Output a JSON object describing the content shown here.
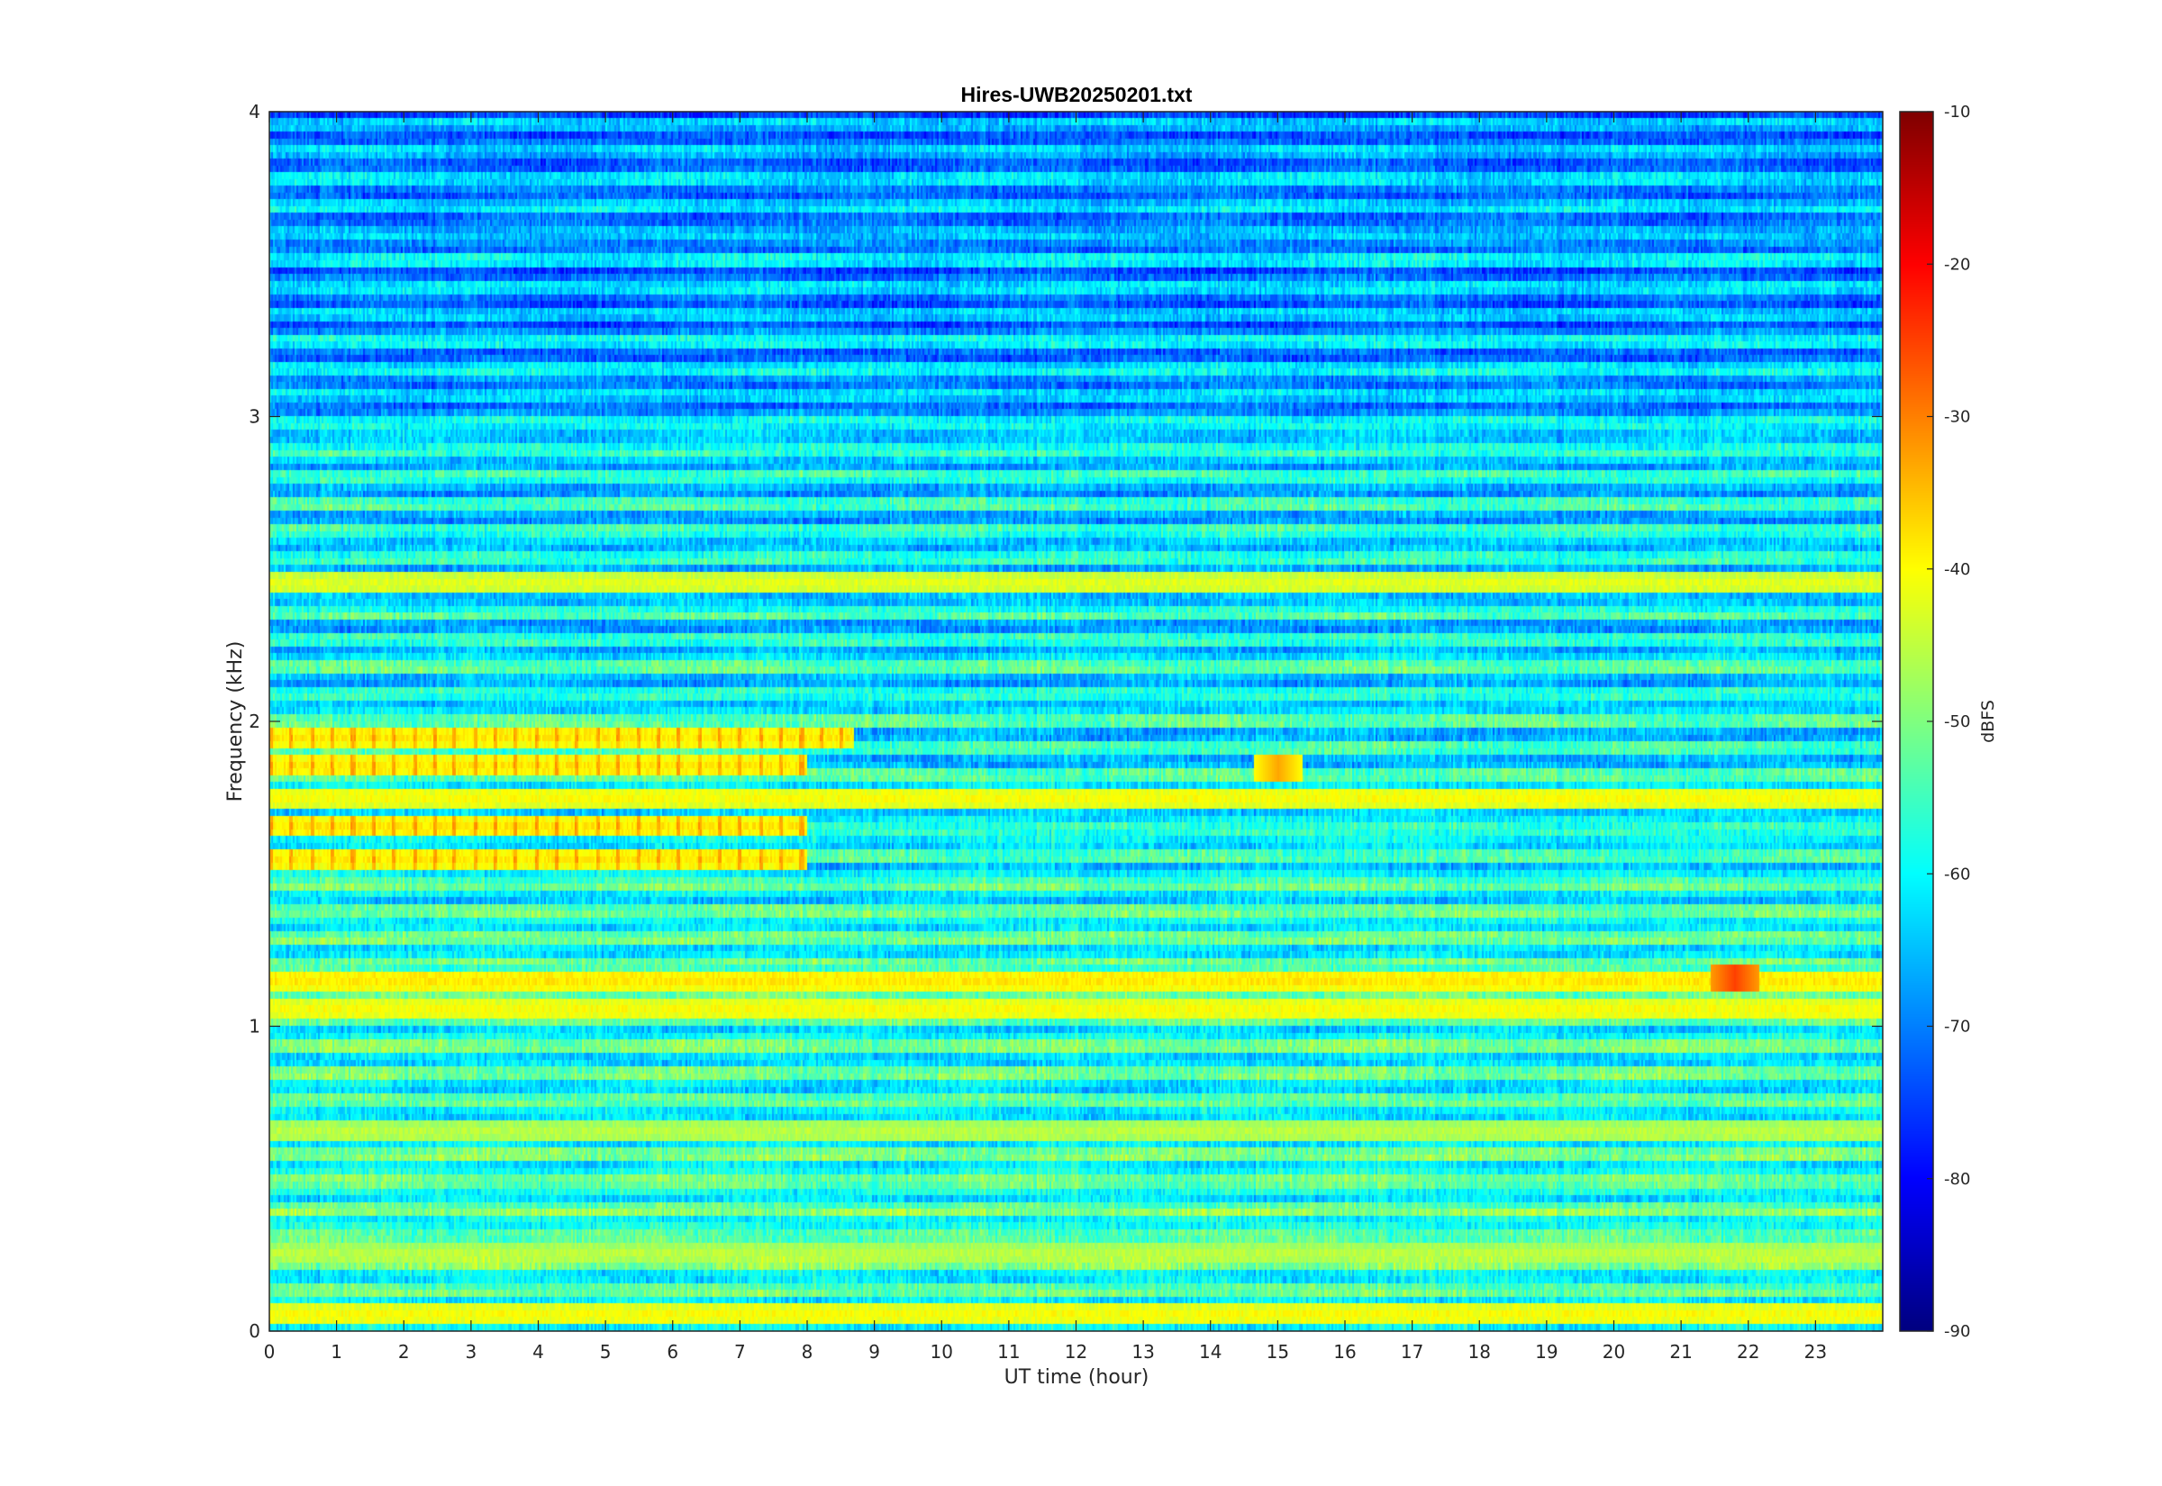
{
  "chart_data": {
    "type": "heatmap",
    "title": "Hires-UWB20250201.txt",
    "xlabel": "UT time (hour)",
    "ylabel": "Frequency (kHz)",
    "xlim": [
      0,
      24
    ],
    "ylim": [
      0,
      4
    ],
    "x_ticks": [
      0,
      1,
      2,
      3,
      4,
      5,
      6,
      7,
      8,
      9,
      10,
      11,
      12,
      13,
      14,
      15,
      16,
      17,
      18,
      19,
      20,
      21,
      22,
      23
    ],
    "y_ticks": [
      0,
      1,
      2,
      3,
      4
    ],
    "colormap": "jet",
    "grid": false,
    "colorbar": {
      "label": "dBFS",
      "clim": [
        -90,
        -10
      ],
      "ticks": [
        -90,
        -80,
        -70,
        -60,
        -50,
        -40,
        -30,
        -20,
        -10
      ]
    },
    "features": [
      {
        "kind": "band",
        "freq_khz": 0.05,
        "level_dbfs": -40
      },
      {
        "kind": "band",
        "freq_khz": 0.25,
        "level_dbfs": -45
      },
      {
        "kind": "band",
        "freq_khz": 0.65,
        "level_dbfs": -45
      },
      {
        "kind": "band",
        "freq_khz": 1.05,
        "level_dbfs": -40
      },
      {
        "kind": "band",
        "freq_khz": 1.15,
        "level_dbfs": -38
      },
      {
        "kind": "band",
        "freq_khz": 1.55,
        "level_dbfs": -38,
        "x_range": [
          0,
          8
        ],
        "pulsed": true
      },
      {
        "kind": "band",
        "freq_khz": 1.65,
        "level_dbfs": -38,
        "x_range": [
          0,
          8
        ],
        "pulsed": true
      },
      {
        "kind": "band",
        "freq_khz": 1.75,
        "level_dbfs": -40
      },
      {
        "kind": "band",
        "freq_khz": 1.85,
        "level_dbfs": -38,
        "x_range": [
          0,
          8
        ],
        "pulsed": true
      },
      {
        "kind": "band",
        "freq_khz": 1.95,
        "level_dbfs": -38,
        "x_range": [
          0,
          8.7
        ],
        "pulsed": true
      },
      {
        "kind": "band",
        "freq_khz": 2.45,
        "level_dbfs": -42
      },
      {
        "kind": "spot",
        "x_hour": 15.0,
        "freq_khz": 1.85,
        "level_dbfs": -33
      },
      {
        "kind": "spot",
        "x_hour": 21.8,
        "freq_khz": 1.15,
        "level_dbfs": -25
      }
    ]
  }
}
